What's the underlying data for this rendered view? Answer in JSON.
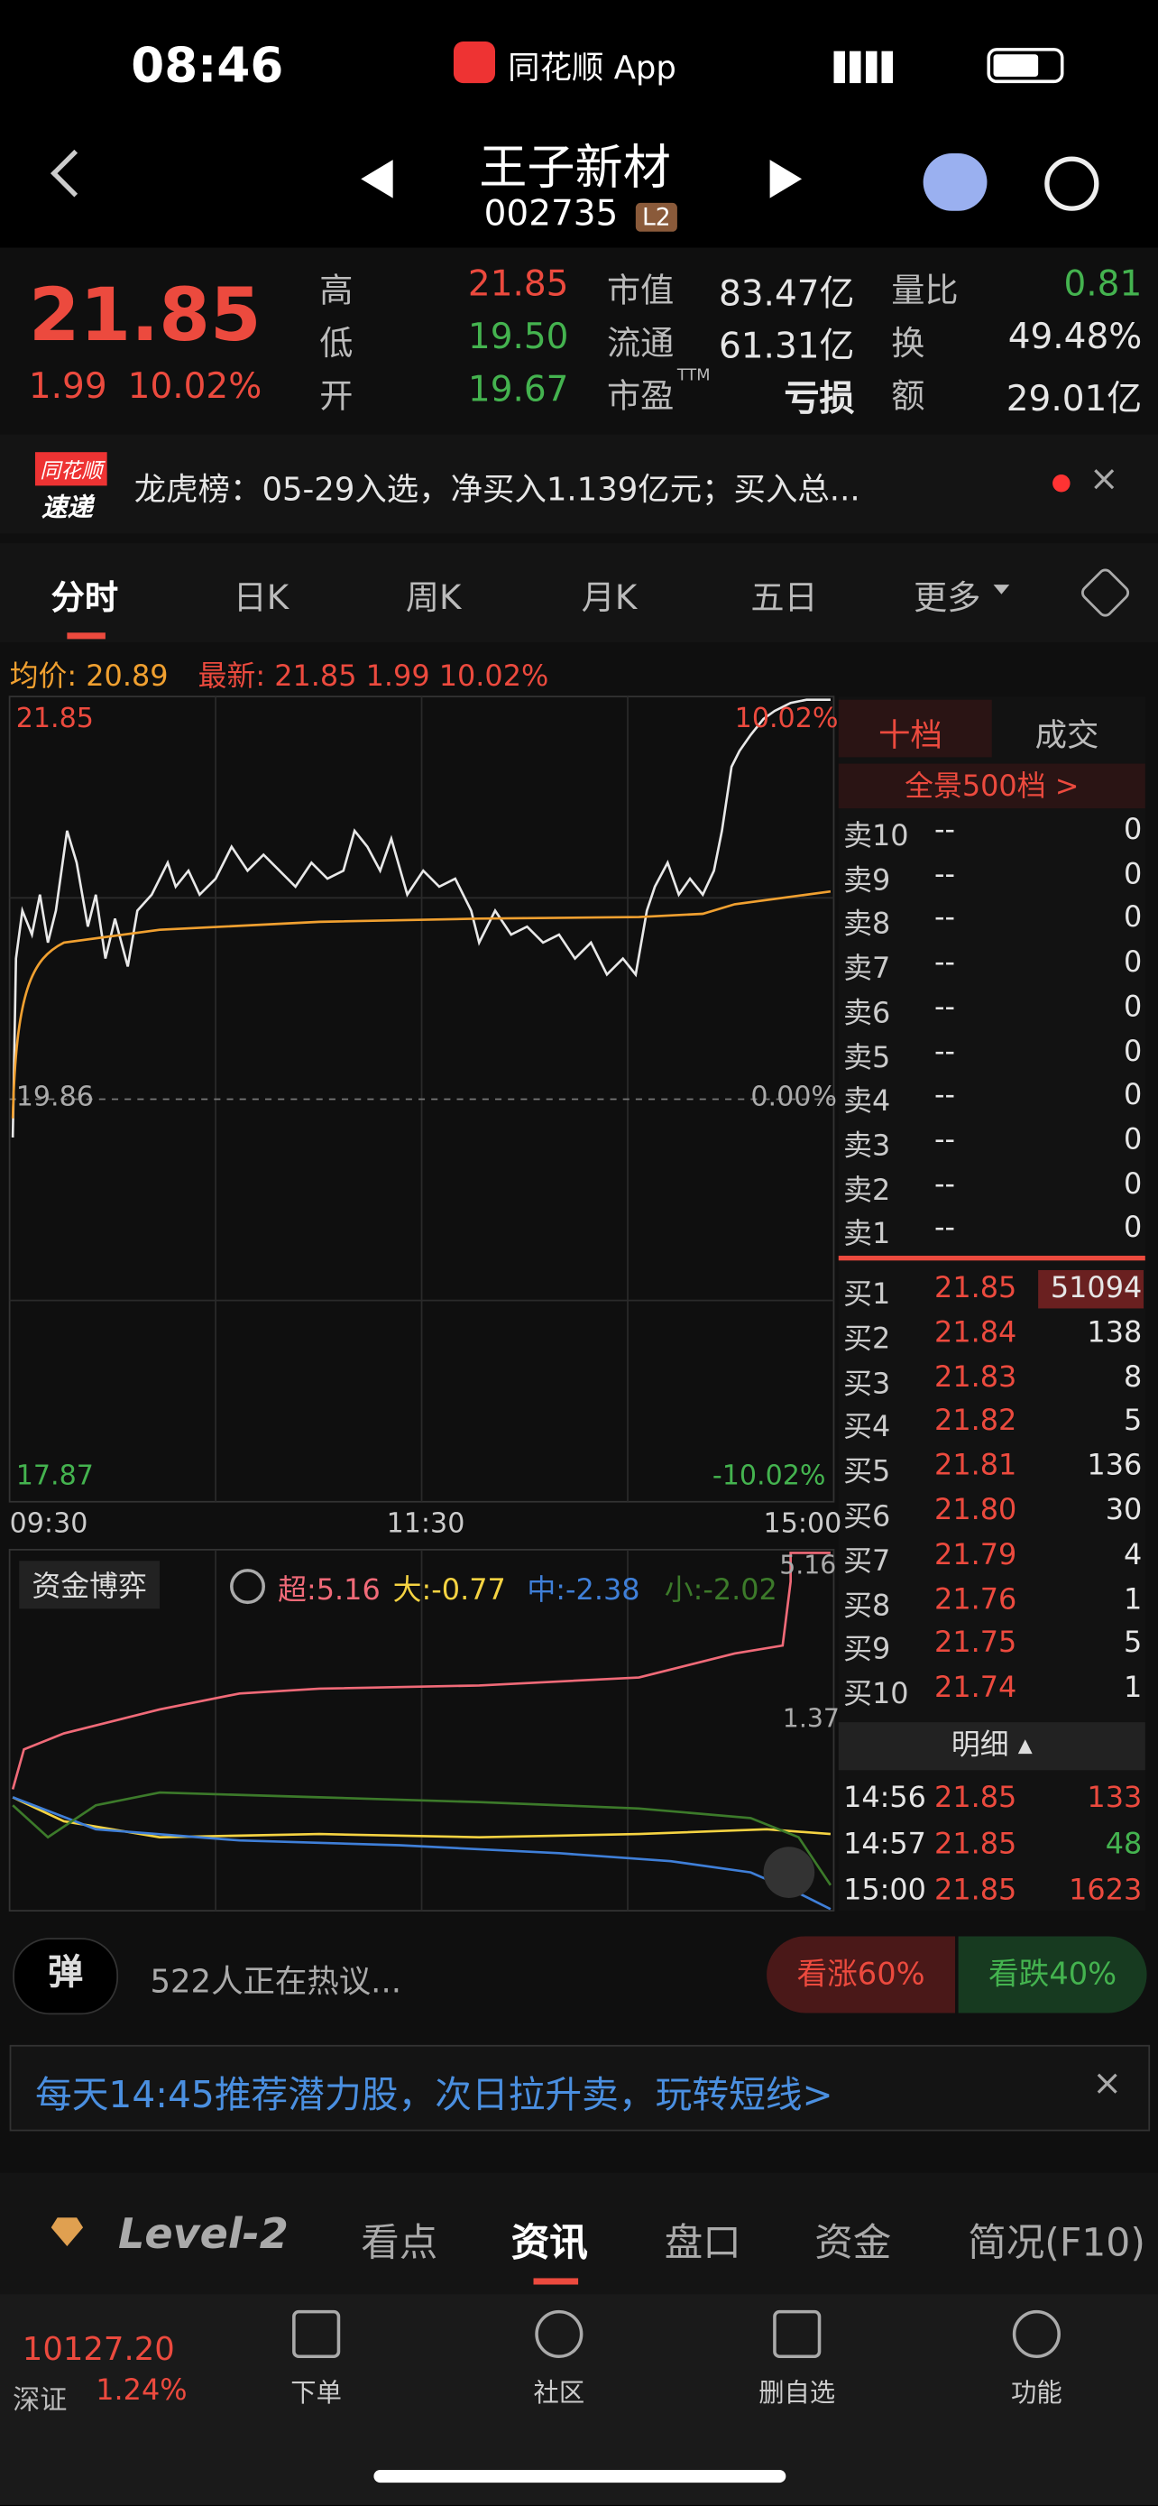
{
  "status_bar": {
    "time": "08:46",
    "app": "同花顺 App"
  },
  "header": {
    "name": "王子新材",
    "code": "002735",
    "badge": "L2"
  },
  "quote": {
    "price": "21.85",
    "change": "1.99",
    "pct": "10.02%",
    "stats": [
      {
        "label": "高",
        "value": "21.85",
        "tone": "up"
      },
      {
        "label": "低",
        "value": "19.50",
        "tone": "down"
      },
      {
        "label": "开",
        "value": "19.67",
        "tone": "down"
      },
      {
        "label": "市值",
        "value": "83.47亿",
        "tone": "flat"
      },
      {
        "label": "流通",
        "value": "61.31亿",
        "tone": "flat"
      },
      {
        "label": "市盈",
        "sup": "TTM",
        "value": "亏损",
        "tone": "flat"
      },
      {
        "label": "量比",
        "value": "0.81",
        "tone": "down"
      },
      {
        "label": "换",
        "value": "49.48%",
        "tone": "flat"
      },
      {
        "label": "额",
        "value": "29.01亿",
        "tone": "flat"
      }
    ]
  },
  "news": {
    "badge_top": "同花顺",
    "badge_bottom": "速递",
    "text": "龙虎榜：05-29入选，净买入1.139亿元；买入总..."
  },
  "tabs": [
    "分时",
    "日K",
    "周K",
    "月K",
    "五日",
    "更多"
  ],
  "chart": {
    "avg": "均价: 20.89",
    "latest": "最新: 21.85  1.99  10.02%",
    "top_price": "21.85",
    "top_pct": "10.02%",
    "mid_price": "19.86",
    "mid_pct": "0.00%",
    "low_price": "17.87",
    "low_pct": "-10.02%",
    "times": [
      "09:30",
      "11:30",
      "15:00"
    ]
  },
  "fund": {
    "title": "资金博弈",
    "super": "超:5.16",
    "large": "大:-0.77",
    "medium": "中:-2.38",
    "small": "小:-2.02",
    "axis_top": "5.16",
    "axis_mid": "1.37"
  },
  "book": {
    "tabs": [
      "十档",
      "成交"
    ],
    "panorama": "全景500档 >",
    "sell": [
      [
        "卖10",
        "--",
        "0"
      ],
      [
        "卖9",
        "--",
        "0"
      ],
      [
        "卖8",
        "--",
        "0"
      ],
      [
        "卖7",
        "--",
        "0"
      ],
      [
        "卖6",
        "--",
        "0"
      ],
      [
        "卖5",
        "--",
        "0"
      ],
      [
        "卖4",
        "--",
        "0"
      ],
      [
        "卖3",
        "--",
        "0"
      ],
      [
        "卖2",
        "--",
        "0"
      ],
      [
        "卖1",
        "--",
        "0"
      ]
    ],
    "buy": [
      [
        "买1",
        "21.85",
        "51094"
      ],
      [
        "买2",
        "21.84",
        "138"
      ],
      [
        "买3",
        "21.83",
        "8"
      ],
      [
        "买4",
        "21.82",
        "5"
      ],
      [
        "买5",
        "21.81",
        "136"
      ],
      [
        "买6",
        "21.80",
        "30"
      ],
      [
        "买7",
        "21.79",
        "4"
      ],
      [
        "买8",
        "21.76",
        "1"
      ],
      [
        "买9",
        "21.75",
        "5"
      ],
      [
        "买10",
        "21.74",
        "1"
      ]
    ],
    "detail": "明细",
    "trades": [
      [
        "14:56",
        "21.85",
        "133"
      ],
      [
        "14:57",
        "21.85",
        "48"
      ],
      [
        "15:00",
        "21.85",
        "1623"
      ]
    ]
  },
  "social": {
    "icon": "弹",
    "text": "522人正在热议...",
    "bull": "看涨60%",
    "bear": "看跌40%"
  },
  "banner": "每天14:45推荐潜力股，次日拉升卖，玩转短线>",
  "bottom_tabs": [
    "Level-2",
    "看点",
    "资讯",
    "盘口",
    "资金",
    "简况(F10)"
  ],
  "footer": {
    "index": "10127.20",
    "market": "深证",
    "pct": "1.24%",
    "nav": [
      "下单",
      "社区",
      "删自选",
      "功能"
    ]
  }
}
